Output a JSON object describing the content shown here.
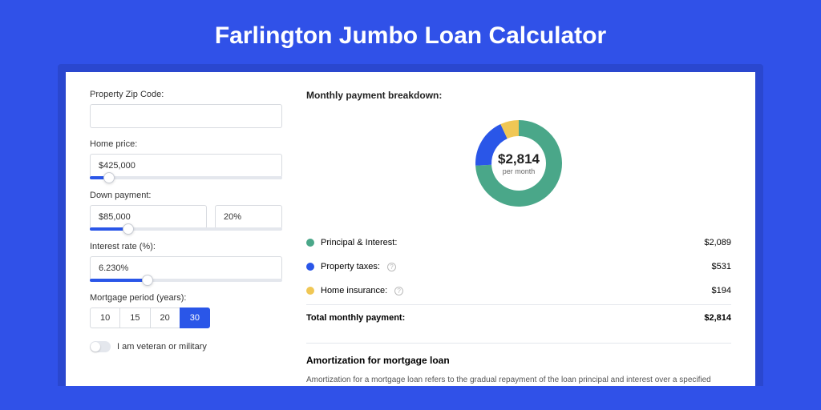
{
  "title": "Farlington Jumbo Loan Calculator",
  "colors": {
    "page_bg": "#3051e8",
    "shadow_bg": "#2a47cf",
    "card_bg": "#ffffff",
    "accent": "#2a56e8",
    "border": "#d8dbe0",
    "text": "#333333"
  },
  "form": {
    "zip": {
      "label": "Property Zip Code:",
      "value": ""
    },
    "price": {
      "label": "Home price:",
      "value": "$425,000",
      "slider_pct": 10
    },
    "down": {
      "label": "Down payment:",
      "value": "$85,000",
      "pct": "20%",
      "slider_pct": 20
    },
    "rate": {
      "label": "Interest rate (%):",
      "value": "6.230%",
      "slider_pct": 30
    },
    "period": {
      "label": "Mortgage period (years):",
      "options": [
        "10",
        "15",
        "20",
        "30"
      ],
      "selected": 3
    },
    "veteran": {
      "label": "I am veteran or military",
      "on": false
    }
  },
  "breakdown": {
    "title": "Monthly payment breakdown:",
    "donut": {
      "amount": "$2,814",
      "sub": "per month",
      "segments": [
        {
          "pct": 74.2,
          "color": "#4aa789"
        },
        {
          "pct": 18.9,
          "color": "#2a56e8"
        },
        {
          "pct": 6.9,
          "color": "#f0c755"
        }
      ],
      "thickness": 20
    },
    "rows": [
      {
        "label": "Principal & Interest:",
        "color": "#4aa789",
        "info": false,
        "value": "$2,089"
      },
      {
        "label": "Property taxes:",
        "color": "#2a56e8",
        "info": true,
        "value": "$531"
      },
      {
        "label": "Home insurance:",
        "color": "#f0c755",
        "info": true,
        "value": "$194"
      }
    ],
    "total": {
      "label": "Total monthly payment:",
      "value": "$2,814"
    }
  },
  "amortization": {
    "title": "Amortization for mortgage loan",
    "body": "Amortization for a mortgage loan refers to the gradual repayment of the loan principal and interest over a specified"
  }
}
